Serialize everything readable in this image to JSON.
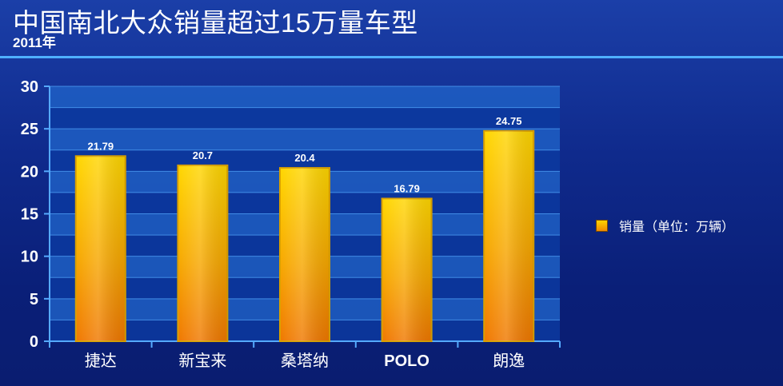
{
  "header": {
    "title": "中国南北大众销量超过15万量车型",
    "subtitle": "2011年"
  },
  "legend": {
    "label": "销量（单位：万辆）"
  },
  "colors": {
    "bar_top": "#ffd600",
    "bar_bottom": "#f07800",
    "bar_border": "#d9a000",
    "plot_band_light": "#1f5fc4",
    "plot_band_dark": "#0c3aa0",
    "axis": "#55aaff",
    "title_rule": "#4fb0ff"
  },
  "chart_data": {
    "type": "bar",
    "title": "中国南北大众销量超过15万量车型",
    "subtitle": "2011年",
    "categories": [
      "捷达",
      "新宝来",
      "桑塔纳",
      "POLO",
      "朗逸"
    ],
    "series": [
      {
        "name": "销量（单位：万辆）",
        "values": [
          21.79,
          20.7,
          20.4,
          16.79,
          24.75
        ]
      }
    ],
    "data_labels": [
      "21.79",
      "20.7",
      "20.4",
      "16.79",
      "24.75"
    ],
    "ylim": [
      0,
      30
    ],
    "yticks": [
      0,
      5,
      10,
      15,
      20,
      25,
      30
    ],
    "grid": true,
    "legend_position": "right"
  }
}
